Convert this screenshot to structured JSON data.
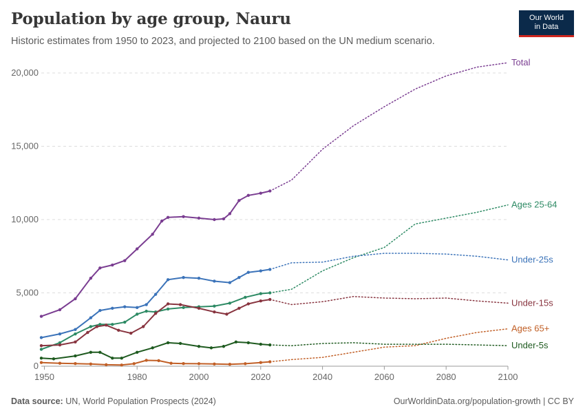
{
  "header": {
    "title": "Population by age group, Nauru",
    "subtitle": "Historic estimates from 1950 to 2023, and projected to 2100 based on the UN medium scenario."
  },
  "logo": {
    "line1": "Our World",
    "line2": "in Data",
    "bg_color": "#0b2a4a",
    "accent_color": "#ce261e"
  },
  "footer": {
    "source_label": "Data source:",
    "source_text": "UN, World Population Prospects (2024)",
    "link_text": "OurWorldinData.org/population-growth | CC BY"
  },
  "chart_data": {
    "type": "line",
    "title": "Population by age group, Nauru",
    "xlim": [
      1949,
      2100
    ],
    "ylim": [
      0,
      20000
    ],
    "x_ticks": [
      1950,
      1980,
      2000,
      2020,
      2040,
      2060,
      2080,
      2100
    ],
    "y_ticks": [
      0,
      5000,
      10000,
      15000,
      20000
    ],
    "y_tick_labels": [
      "0",
      "5,000",
      "10,000",
      "15,000",
      "20,000"
    ],
    "grid": "horizontal dashed",
    "historic_end": 2023,
    "legend": "inline labels at right end of lines",
    "series": [
      {
        "name": "Total",
        "color": "#7a3d91",
        "points": [
          [
            1949,
            3400
          ],
          [
            1955,
            3850
          ],
          [
            1960,
            4600
          ],
          [
            1965,
            6000
          ],
          [
            1968,
            6700
          ],
          [
            1972,
            6900
          ],
          [
            1976,
            7200
          ],
          [
            1980,
            8000
          ],
          [
            1985,
            9000
          ],
          [
            1988,
            9900
          ],
          [
            1990,
            10150
          ],
          [
            1995,
            10200
          ],
          [
            2000,
            10100
          ],
          [
            2005,
            10000
          ],
          [
            2008,
            10050
          ],
          [
            2010,
            10400
          ],
          [
            2013,
            11300
          ],
          [
            2016,
            11650
          ],
          [
            2020,
            11800
          ],
          [
            2023,
            11950
          ],
          [
            2030,
            12700
          ],
          [
            2040,
            14800
          ],
          [
            2050,
            16400
          ],
          [
            2060,
            17700
          ],
          [
            2070,
            18900
          ],
          [
            2080,
            19800
          ],
          [
            2090,
            20400
          ],
          [
            2100,
            20700
          ]
        ]
      },
      {
        "name": "Ages 25-64",
        "color": "#2d8a64",
        "points": [
          [
            1949,
            1150
          ],
          [
            1955,
            1600
          ],
          [
            1960,
            2200
          ],
          [
            1965,
            2700
          ],
          [
            1968,
            2850
          ],
          [
            1972,
            2850
          ],
          [
            1976,
            3000
          ],
          [
            1980,
            3550
          ],
          [
            1983,
            3750
          ],
          [
            1986,
            3700
          ],
          [
            1990,
            3900
          ],
          [
            1995,
            4000
          ],
          [
            2000,
            4050
          ],
          [
            2005,
            4100
          ],
          [
            2010,
            4300
          ],
          [
            2015,
            4700
          ],
          [
            2020,
            4950
          ],
          [
            2023,
            5000
          ],
          [
            2030,
            5250
          ],
          [
            2040,
            6500
          ],
          [
            2050,
            7400
          ],
          [
            2060,
            8100
          ],
          [
            2070,
            9700
          ],
          [
            2080,
            10100
          ],
          [
            2090,
            10500
          ],
          [
            2100,
            11000
          ]
        ]
      },
      {
        "name": "Under-25s",
        "color": "#3b73b9",
        "points": [
          [
            1949,
            1950
          ],
          [
            1955,
            2200
          ],
          [
            1960,
            2500
          ],
          [
            1965,
            3300
          ],
          [
            1968,
            3800
          ],
          [
            1972,
            3950
          ],
          [
            1976,
            4050
          ],
          [
            1980,
            4000
          ],
          [
            1983,
            4200
          ],
          [
            1986,
            4900
          ],
          [
            1990,
            5900
          ],
          [
            1995,
            6050
          ],
          [
            2000,
            6000
          ],
          [
            2005,
            5800
          ],
          [
            2010,
            5700
          ],
          [
            2013,
            6050
          ],
          [
            2016,
            6400
          ],
          [
            2020,
            6500
          ],
          [
            2023,
            6600
          ],
          [
            2030,
            7050
          ],
          [
            2040,
            7100
          ],
          [
            2050,
            7500
          ],
          [
            2060,
            7700
          ],
          [
            2070,
            7700
          ],
          [
            2080,
            7650
          ],
          [
            2090,
            7500
          ],
          [
            2100,
            7250
          ]
        ]
      },
      {
        "name": "Under-15s",
        "color": "#88343f",
        "points": [
          [
            1949,
            1400
          ],
          [
            1955,
            1450
          ],
          [
            1960,
            1650
          ],
          [
            1964,
            2300
          ],
          [
            1967,
            2700
          ],
          [
            1970,
            2800
          ],
          [
            1974,
            2450
          ],
          [
            1978,
            2250
          ],
          [
            1982,
            2700
          ],
          [
            1986,
            3600
          ],
          [
            1990,
            4250
          ],
          [
            1994,
            4200
          ],
          [
            2000,
            3950
          ],
          [
            2005,
            3700
          ],
          [
            2009,
            3550
          ],
          [
            2013,
            3950
          ],
          [
            2016,
            4250
          ],
          [
            2020,
            4450
          ],
          [
            2023,
            4550
          ],
          [
            2030,
            4200
          ],
          [
            2040,
            4400
          ],
          [
            2050,
            4750
          ],
          [
            2060,
            4650
          ],
          [
            2070,
            4600
          ],
          [
            2080,
            4650
          ],
          [
            2090,
            4450
          ],
          [
            2100,
            4300
          ]
        ]
      },
      {
        "name": "Ages 65+",
        "color": "#c15f26",
        "points": [
          [
            1949,
            250
          ],
          [
            1955,
            200
          ],
          [
            1960,
            180
          ],
          [
            1965,
            150
          ],
          [
            1970,
            100
          ],
          [
            1975,
            80
          ],
          [
            1979,
            170
          ],
          [
            1983,
            400
          ],
          [
            1987,
            380
          ],
          [
            1991,
            200
          ],
          [
            1995,
            180
          ],
          [
            2000,
            170
          ],
          [
            2005,
            150
          ],
          [
            2010,
            130
          ],
          [
            2015,
            170
          ],
          [
            2020,
            250
          ],
          [
            2023,
            300
          ],
          [
            2030,
            450
          ],
          [
            2040,
            600
          ],
          [
            2050,
            950
          ],
          [
            2060,
            1300
          ],
          [
            2070,
            1400
          ],
          [
            2080,
            1900
          ],
          [
            2090,
            2300
          ],
          [
            2100,
            2550
          ]
        ]
      },
      {
        "name": "Under-5s",
        "color": "#1e5a1f",
        "points": [
          [
            1949,
            550
          ],
          [
            1953,
            500
          ],
          [
            1960,
            700
          ],
          [
            1965,
            950
          ],
          [
            1968,
            950
          ],
          [
            1972,
            550
          ],
          [
            1975,
            550
          ],
          [
            1980,
            950
          ],
          [
            1985,
            1250
          ],
          [
            1990,
            1600
          ],
          [
            1994,
            1550
          ],
          [
            2000,
            1350
          ],
          [
            2004,
            1250
          ],
          [
            2008,
            1350
          ],
          [
            2012,
            1650
          ],
          [
            2016,
            1600
          ],
          [
            2020,
            1500
          ],
          [
            2023,
            1450
          ],
          [
            2030,
            1400
          ],
          [
            2040,
            1550
          ],
          [
            2050,
            1600
          ],
          [
            2060,
            1500
          ],
          [
            2070,
            1500
          ],
          [
            2080,
            1500
          ],
          [
            2090,
            1450
          ],
          [
            2100,
            1400
          ]
        ]
      }
    ]
  }
}
